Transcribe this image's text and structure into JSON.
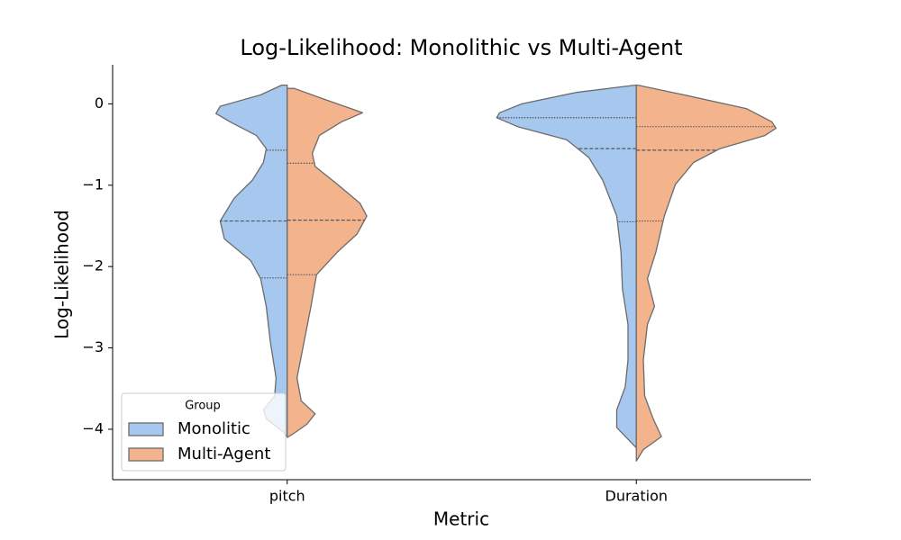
{
  "chart_data": {
    "type": "violin",
    "title": "Log-Likelihood: Monolithic vs Multi-Agent",
    "xlabel": "Metric",
    "ylabel": "Log-Likelihood",
    "categories": [
      "pitch",
      "Duration"
    ],
    "ylim": [
      -4.62,
      0.48
    ],
    "yticks": [
      0,
      {
        "value": -1,
        "label": "−1"
      },
      {
        "value": -2,
        "label": "−2"
      },
      {
        "value": -3,
        "label": "−3"
      },
      {
        "value": -4,
        "label": "−4"
      }
    ],
    "legend_title": "Group",
    "legend": "lower left",
    "split": true,
    "series": [
      {
        "name": "Monolitic",
        "color": "#a6c8ef",
        "violins": [
          {
            "y": [
              0.23,
              0.11,
              -0.03,
              -0.12,
              -0.22,
              -0.39,
              -0.55,
              -0.72,
              -0.94,
              -1.16,
              -1.44,
              -1.66,
              -1.93,
              -2.15,
              -2.49,
              -2.93,
              -3.37,
              -3.59,
              -3.76,
              -3.87,
              -4.03,
              -4.09
            ],
            "density": [
              0.04,
              0.19,
              0.48,
              0.51,
              0.41,
              0.22,
              0.15,
              0.17,
              0.25,
              0.38,
              0.48,
              0.45,
              0.26,
              0.19,
              0.15,
              0.12,
              0.08,
              0.09,
              0.17,
              0.15,
              0.03,
              0
            ],
            "quartiles": [
              -0.57,
              -1.44,
              -2.14
            ]
          },
          {
            "y": [
              0.23,
              0.14,
              0,
              -0.11,
              -0.17,
              -0.28,
              -0.44,
              -0.66,
              -0.94,
              -1.38,
              -1.82,
              -2.27,
              -2.71,
              -3.15,
              -3.48,
              -3.76,
              -3.98,
              -4.14,
              -4.23
            ],
            "density": [
              0.01,
              0.43,
              0.82,
              0.98,
              1.0,
              0.85,
              0.5,
              0.34,
              0.24,
              0.14,
              0.11,
              0.1,
              0.06,
              0.06,
              0.08,
              0.14,
              0.14,
              0.05,
              0
            ],
            "quartiles": [
              -0.17,
              -0.55,
              -1.45
            ]
          }
        ]
      },
      {
        "name": "Multi-Agent",
        "color": "#f3b48d",
        "violins": [
          {
            "y": [
              0.19,
              0.06,
              -0.11,
              -0.22,
              -0.39,
              -0.61,
              -0.77,
              -0.99,
              -1.22,
              -1.38,
              -1.6,
              -1.82,
              -2.1,
              -2.49,
              -2.93,
              -3.37,
              -3.65,
              -3.81,
              -3.94,
              -4.06,
              -4.1
            ],
            "density": [
              0.05,
              0.26,
              0.54,
              0.39,
              0.23,
              0.18,
              0.2,
              0.36,
              0.52,
              0.57,
              0.5,
              0.36,
              0.21,
              0.17,
              0.12,
              0.07,
              0.1,
              0.2,
              0.14,
              0.04,
              0
            ],
            "quartiles": [
              -0.73,
              -1.43,
              -2.1
            ]
          },
          {
            "y": [
              0.23,
              0.11,
              -0.06,
              -0.22,
              -0.3,
              -0.39,
              -0.55,
              -0.72,
              -0.99,
              -1.38,
              -1.82,
              -2.15,
              -2.49,
              -2.71,
              -3.15,
              -3.59,
              -3.87,
              -4.09,
              -4.25,
              -4.39
            ],
            "density": [
              0.01,
              0.34,
              0.79,
              0.97,
              1.0,
              0.92,
              0.6,
              0.41,
              0.28,
              0.2,
              0.14,
              0.08,
              0.13,
              0.08,
              0.05,
              0.06,
              0.12,
              0.18,
              0.05,
              0
            ],
            "quartiles": [
              -0.28,
              -0.57,
              -1.44
            ]
          }
        ]
      }
    ]
  }
}
